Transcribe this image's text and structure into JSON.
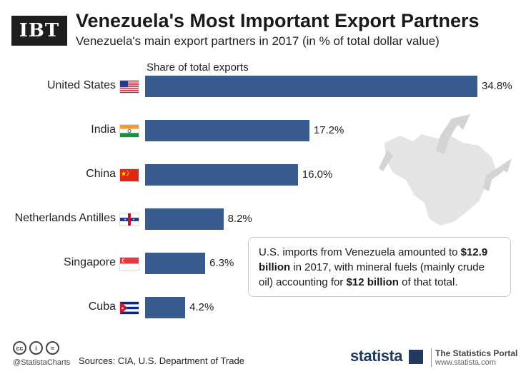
{
  "header": {
    "logo": "IBT",
    "title": "Venezuela's Most Important Export Partners",
    "subtitle": "Venezuela's main export partners in 2017 (in % of total dollar value)"
  },
  "chart_data": {
    "type": "bar",
    "orientation": "horizontal",
    "xlabel": "Share of total exports",
    "categories": [
      "United States",
      "India",
      "China",
      "Netherlands Antilles",
      "Singapore",
      "Cuba"
    ],
    "values": [
      34.8,
      17.2,
      16.0,
      8.2,
      6.3,
      4.2
    ],
    "value_labels": [
      "34.8%",
      "17.2%",
      "16.0%",
      "8.2%",
      "6.3%",
      "4.2%"
    ],
    "xlim": [
      0,
      34.8
    ],
    "grid": false,
    "bar_color": "#375a8f"
  },
  "flags": [
    "us-flag-icon",
    "india-flag-icon",
    "china-flag-icon",
    "netherlands-antilles-flag-icon",
    "singapore-flag-icon",
    "cuba-flag-icon"
  ],
  "info": {
    "p1": "U.S. imports from Venezuela amounted to ",
    "b1": "$12.9 billion",
    "p2": " in 2017, with mineral fuels (mainly crude oil) accounting for ",
    "b2": "$12 billion",
    "p3": " of that total."
  },
  "footer": {
    "handle": "@StatistaCharts",
    "sources": "Sources: CIA, U.S. Department of Trade",
    "brand": "statista",
    "portal_title": "The Statistics Portal",
    "portal_url": "www.statista.com"
  }
}
